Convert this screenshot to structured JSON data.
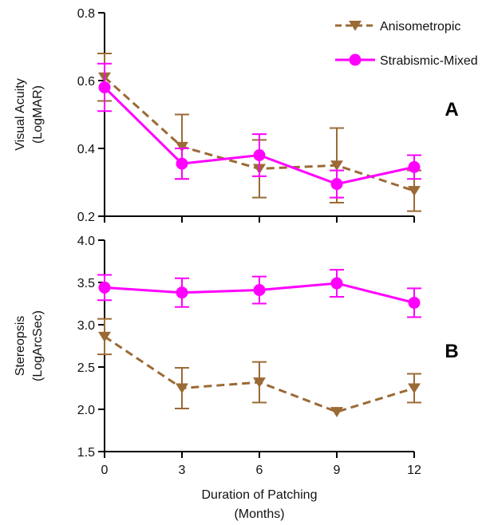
{
  "chart_data": [
    {
      "type": "line",
      "panel_label": "A",
      "ylabel": [
        "Visual Acuity",
        "(LogMAR)"
      ],
      "ylim": [
        0.2,
        0.8
      ],
      "yticks": [
        "0.2",
        "0.4",
        "0.6",
        "0.8"
      ],
      "ytick_values": [
        0.2,
        0.4,
        0.6,
        0.8
      ],
      "x": [
        0,
        3,
        6,
        9,
        12
      ],
      "xlim": [
        0,
        12
      ],
      "legend_placement": "top-right",
      "series": [
        {
          "name": "Anisometropic",
          "color": "#9b6a35",
          "marker": "triangle-down",
          "line_style": "dashed",
          "values": [
            0.61,
            0.405,
            0.34,
            0.35,
            0.275
          ],
          "error": [
            0.07,
            0.095,
            0.085,
            0.11,
            0.06
          ]
        },
        {
          "name": "Strabismic-Mixed",
          "color": "#ff00ff",
          "marker": "circle",
          "line_style": "solid",
          "values": [
            0.58,
            0.355,
            0.38,
            0.295,
            0.345
          ],
          "error": [
            0.07,
            0.045,
            0.062,
            0.04,
            0.035
          ]
        }
      ]
    },
    {
      "type": "line",
      "panel_label": "B",
      "ylabel": [
        "Stereopsis",
        "(LogArcSec)"
      ],
      "ylim": [
        1.5,
        4.0
      ],
      "yticks": [
        "1.5",
        "2.0",
        "2.5",
        "3.0",
        "3.5",
        "4.0"
      ],
      "ytick_values": [
        1.5,
        2.0,
        2.5,
        3.0,
        3.5,
        4.0
      ],
      "x": [
        0,
        3,
        6,
        9,
        12
      ],
      "xlim": [
        0,
        12
      ],
      "xticks": [
        "0",
        "3",
        "6",
        "9",
        "12"
      ],
      "xlabel": [
        "Duration of Patching",
        "(Months)"
      ],
      "series": [
        {
          "name": "Strabismic-Mixed",
          "color": "#ff00ff",
          "marker": "circle",
          "line_style": "solid",
          "values": [
            3.44,
            3.38,
            3.41,
            3.49,
            3.26
          ],
          "error": [
            0.15,
            0.17,
            0.16,
            0.16,
            0.17
          ]
        },
        {
          "name": "Anisometropic",
          "color": "#9b6a35",
          "marker": "triangle-down",
          "line_style": "dashed",
          "values": [
            2.86,
            2.25,
            2.32,
            1.97,
            2.25
          ],
          "error": [
            0.21,
            0.24,
            0.24,
            0.0,
            0.17
          ]
        }
      ]
    }
  ]
}
